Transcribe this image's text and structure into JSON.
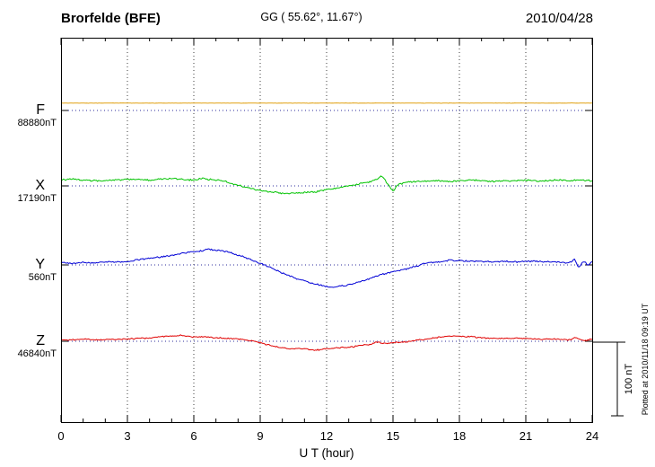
{
  "header": {
    "station": "Brorfelde (BFE)",
    "coords": "GG ( 55.62°,  11.67°)",
    "date": "2010/04/28"
  },
  "axis": {
    "x_label": "U T (hour)",
    "x_ticks": [
      0,
      3,
      6,
      9,
      12,
      15,
      18,
      21,
      24
    ],
    "x_min": 0,
    "x_max": 24
  },
  "scale_bar": {
    "label": "100 nT",
    "nT": 100
  },
  "footer_note": "Plotted at 2010/11/18 09:19 UT",
  "chart_data": {
    "type": "line",
    "title": "Brorfelde (BFE) magnetogram",
    "date": "2010/04/28",
    "xlabel": "U T (hour)",
    "x_range": [
      0,
      24
    ],
    "x_tick_step_hours": 3,
    "y_unit": "nT",
    "scale_bar_nT": 100,
    "grid": "dotted",
    "points_format": "[hour_UT, deviation_nT_from_baseline]",
    "series": [
      {
        "name": "F",
        "color": "#e0a010",
        "baseline_label": "88880nT",
        "baseline_nT": 88880,
        "noise_nT": 0.25,
        "points": [
          [
            0,
            10
          ],
          [
            3,
            10
          ],
          [
            6,
            10
          ],
          [
            9,
            10
          ],
          [
            12,
            10
          ],
          [
            15,
            10
          ],
          [
            18,
            10
          ],
          [
            21,
            10
          ],
          [
            24,
            10
          ]
        ]
      },
      {
        "name": "X",
        "color": "#00c300",
        "baseline_label": "17190nT",
        "baseline_nT": 17190,
        "noise_nT": 1.3,
        "points": [
          [
            0,
            8
          ],
          [
            0.5,
            9
          ],
          [
            1,
            8
          ],
          [
            1.5,
            7
          ],
          [
            2,
            7
          ],
          [
            2.5,
            8
          ],
          [
            3,
            9
          ],
          [
            3.5,
            9
          ],
          [
            4,
            8
          ],
          [
            4.5,
            9
          ],
          [
            5,
            10
          ],
          [
            5.5,
            9
          ],
          [
            6,
            8
          ],
          [
            6.3,
            10
          ],
          [
            6.6,
            9
          ],
          [
            7,
            8
          ],
          [
            7.3,
            7
          ],
          [
            7.6,
            4
          ],
          [
            8,
            1
          ],
          [
            8.5,
            -3
          ],
          [
            9,
            -6
          ],
          [
            9.5,
            -8
          ],
          [
            10,
            -10
          ],
          [
            10.5,
            -10
          ],
          [
            11,
            -9
          ],
          [
            11.5,
            -8
          ],
          [
            12,
            -5
          ],
          [
            12.5,
            -3
          ],
          [
            13,
            0
          ],
          [
            13.5,
            3
          ],
          [
            14,
            6
          ],
          [
            14.3,
            9
          ],
          [
            14.5,
            13
          ],
          [
            14.7,
            5
          ],
          [
            15,
            -6
          ],
          [
            15.2,
            1
          ],
          [
            15.5,
            4
          ],
          [
            16,
            6
          ],
          [
            16.5,
            6
          ],
          [
            17,
            7
          ],
          [
            17.5,
            6
          ],
          [
            18,
            7
          ],
          [
            18.5,
            8
          ],
          [
            19,
            7
          ],
          [
            19.5,
            6
          ],
          [
            20,
            7
          ],
          [
            20.5,
            7
          ],
          [
            21,
            8
          ],
          [
            21.5,
            7
          ],
          [
            22,
            7
          ],
          [
            22.5,
            8
          ],
          [
            23,
            7
          ],
          [
            23.5,
            8
          ],
          [
            24,
            7
          ]
        ]
      },
      {
        "name": "Y",
        "color": "#0000d6",
        "baseline_label": "560nT",
        "baseline_nT": 560,
        "noise_nT": 1.3,
        "points": [
          [
            0,
            3
          ],
          [
            0.5,
            2
          ],
          [
            1,
            3
          ],
          [
            1.5,
            3
          ],
          [
            2,
            4
          ],
          [
            2.5,
            4
          ],
          [
            3,
            5
          ],
          [
            3.5,
            7
          ],
          [
            4,
            9
          ],
          [
            4.5,
            11
          ],
          [
            5,
            13
          ],
          [
            5.5,
            16
          ],
          [
            6,
            18
          ],
          [
            6.3,
            19
          ],
          [
            6.6,
            21
          ],
          [
            7,
            20
          ],
          [
            7.3,
            19
          ],
          [
            7.6,
            17
          ],
          [
            8,
            13
          ],
          [
            8.5,
            8
          ],
          [
            9,
            2
          ],
          [
            9.5,
            -4
          ],
          [
            10,
            -11
          ],
          [
            10.5,
            -17
          ],
          [
            11,
            -22
          ],
          [
            11.5,
            -26
          ],
          [
            12,
            -29
          ],
          [
            12.3,
            -30
          ],
          [
            12.6,
            -29
          ],
          [
            13,
            -27
          ],
          [
            13.5,
            -23
          ],
          [
            14,
            -18
          ],
          [
            14.5,
            -13
          ],
          [
            15,
            -9
          ],
          [
            15.5,
            -6
          ],
          [
            16,
            -2
          ],
          [
            16.5,
            2
          ],
          [
            17,
            4
          ],
          [
            17.5,
            6
          ],
          [
            18,
            6
          ],
          [
            18.5,
            5
          ],
          [
            19,
            5
          ],
          [
            19.5,
            4
          ],
          [
            20,
            5
          ],
          [
            20.5,
            4
          ],
          [
            21,
            5
          ],
          [
            21.5,
            5
          ],
          [
            22,
            4
          ],
          [
            22.5,
            4
          ],
          [
            23,
            3
          ],
          [
            23.2,
            7
          ],
          [
            23.4,
            -3
          ],
          [
            23.6,
            5
          ],
          [
            23.8,
            0
          ],
          [
            24,
            4
          ]
        ]
      },
      {
        "name": "Z",
        "color": "#e00000",
        "baseline_label": "46840nT",
        "baseline_nT": 46840,
        "noise_nT": 1.1,
        "points": [
          [
            0,
            2
          ],
          [
            0.5,
            2
          ],
          [
            1,
            3
          ],
          [
            1.5,
            2
          ],
          [
            2,
            2
          ],
          [
            2.5,
            3
          ],
          [
            3,
            3
          ],
          [
            3.5,
            4
          ],
          [
            4,
            4
          ],
          [
            4.5,
            6
          ],
          [
            5,
            7
          ],
          [
            5.3,
            8
          ],
          [
            5.6,
            7
          ],
          [
            6,
            6
          ],
          [
            6.5,
            6
          ],
          [
            7,
            5
          ],
          [
            7.5,
            4
          ],
          [
            8,
            3
          ],
          [
            8.5,
            1
          ],
          [
            9,
            -2
          ],
          [
            9.5,
            -6
          ],
          [
            10,
            -9
          ],
          [
            10.5,
            -10
          ],
          [
            11,
            -10
          ],
          [
            11.5,
            -12
          ],
          [
            12,
            -10
          ],
          [
            12.5,
            -9
          ],
          [
            13,
            -8
          ],
          [
            13.5,
            -6
          ],
          [
            14,
            -4
          ],
          [
            14.3,
            -1
          ],
          [
            14.6,
            -3
          ],
          [
            15,
            -2
          ],
          [
            15.5,
            -1
          ],
          [
            16,
            1
          ],
          [
            16.5,
            3
          ],
          [
            17,
            5
          ],
          [
            17.5,
            7
          ],
          [
            18,
            7
          ],
          [
            18.5,
            6
          ],
          [
            19,
            5
          ],
          [
            19.5,
            4
          ],
          [
            20,
            4
          ],
          [
            20.5,
            4
          ],
          [
            21,
            4
          ],
          [
            21.5,
            3
          ],
          [
            22,
            3
          ],
          [
            22.5,
            3
          ],
          [
            23,
            2
          ],
          [
            23.3,
            5
          ],
          [
            23.6,
            1
          ],
          [
            24,
            3
          ]
        ]
      }
    ]
  }
}
